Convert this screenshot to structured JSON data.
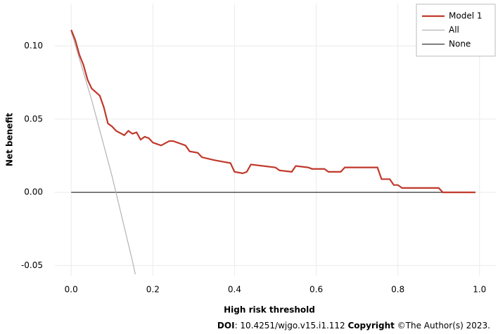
{
  "chart_data": {
    "type": "line",
    "xlabel": "High risk threshold",
    "ylabel": "Net benefit",
    "xlim": [
      -0.04,
      1.04
    ],
    "ylim": [
      -0.057,
      0.129
    ],
    "xticks": [
      {
        "value": 0,
        "label": "0.0"
      },
      0.2,
      0.4,
      0.6,
      0.8,
      {
        "value": 1,
        "label": "1.0"
      }
    ],
    "yticks": [
      {
        "value": -0.05,
        "label": "-0.05"
      },
      {
        "value": 0,
        "label": "0.00"
      },
      0.05,
      {
        "value": 0.1,
        "label": "0.10"
      }
    ],
    "grid": true,
    "legend": "top-right",
    "series": [
      {
        "name": "Model 1",
        "color": "#c0392b",
        "x": [
          0,
          0.01,
          0.02,
          0.03,
          0.04,
          0.05,
          0.07,
          0.08,
          0.09,
          0.1,
          0.11,
          0.13,
          0.14,
          0.15,
          0.16,
          0.17,
          0.18,
          0.19,
          0.2,
          0.22,
          0.24,
          0.25,
          0.27,
          0.28,
          0.29,
          0.31,
          0.32,
          0.35,
          0.37,
          0.39,
          0.4,
          0.42,
          0.43,
          0.44,
          0.5,
          0.51,
          0.54,
          0.55,
          0.58,
          0.59,
          0.62,
          0.63,
          0.66,
          0.67,
          0.75,
          0.76,
          0.78,
          0.79,
          0.8,
          0.81,
          0.9,
          0.91,
          0.99
        ],
        "values": [
          0.111,
          0.104,
          0.094,
          0.087,
          0.077,
          0.071,
          0.066,
          0.058,
          0.047,
          0.045,
          0.042,
          0.039,
          0.042,
          0.04,
          0.041,
          0.036,
          0.038,
          0.037,
          0.034,
          0.032,
          0.035,
          0.035,
          0.033,
          0.032,
          0.028,
          0.027,
          0.024,
          0.022,
          0.021,
          0.02,
          0.014,
          0.013,
          0.014,
          0.019,
          0.017,
          0.015,
          0.014,
          0.018,
          0.017,
          0.016,
          0.016,
          0.014,
          0.014,
          0.017,
          0.017,
          0.009,
          0.009,
          0.005,
          0.005,
          0.003,
          0.003,
          0,
          0
        ]
      },
      {
        "name": "All",
        "color": "#b3b3b3",
        "x": [
          0,
          0.05,
          0.1,
          0.15,
          0.157
        ],
        "values": [
          0.11,
          0.0632,
          0.0111,
          -0.047,
          -0.056
        ]
      },
      {
        "name": "None",
        "color": "#333333",
        "x": [
          0,
          0.99
        ],
        "values": [
          0,
          0
        ]
      }
    ]
  },
  "footer": {
    "doi_label": "DOI",
    "doi": ": 10.4251/wjgo.v15.i1.112 ",
    "copyright_label": "Copyright",
    "copyright": " ©The Author(s) 2023."
  }
}
